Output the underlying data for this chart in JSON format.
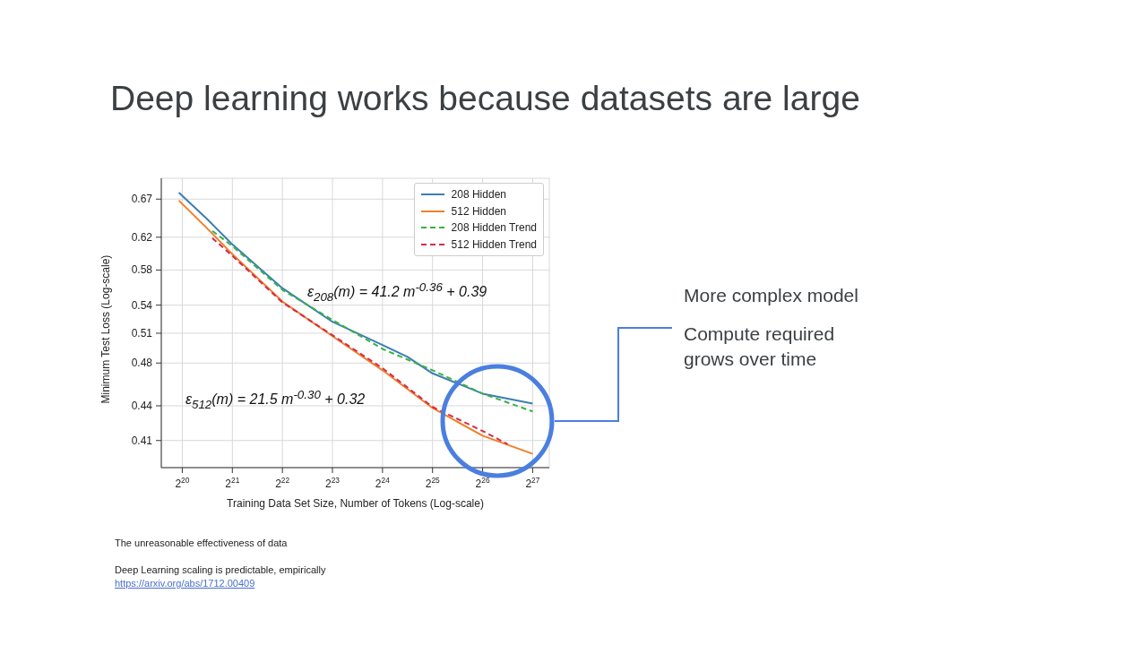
{
  "chart_data": {
    "type": "line",
    "title": "Deep learning works because datasets are large",
    "xlabel": "Training Data Set Size, Number of Tokens (Log-scale)",
    "ylabel": "Minimum Test Loss (Log-scale)",
    "annotations": [
      "ε$_{208}$(m) = 41.2 m$^{-0.36}$ + 0.39",
      "ε$_{512}$(m) = 21.5 m$^{-0.30}$ + 0.32",
      "More complex model",
      "Compute required grows over time",
      "The unreasonable effectiveness of data",
      "Deep Learning scaling is predictable, empirically",
      "https://arxiv.org/abs/1712.00409"
    ],
    "series": [
      {
        "name": "208 Hidden",
        "color": "#3a7fb3",
        "x": [
          1000000,
          1482910,
          2097152,
          4194304,
          8388608,
          16777216,
          23726566,
          33554432,
          67108864,
          134217728
        ],
        "values": [
          0.679,
          0.643,
          0.611,
          0.559,
          0.522,
          0.498,
          0.486,
          0.47,
          0.451,
          0.442
        ]
      },
      {
        "name": "512 Hidden",
        "color": "#f07f2a",
        "x": [
          1000000,
          1482910,
          2097152,
          4194304,
          8388608,
          16777216,
          33554432,
          67108864,
          134217728
        ],
        "values": [
          0.668,
          0.631,
          0.599,
          0.544,
          0.507,
          0.473,
          0.438,
          0.414,
          0.399
        ]
      },
      {
        "name": "208 Hidden Trend",
        "color": "#3cb043",
        "line_style": "dashed",
        "x": [
          1589000,
          2097152,
          4194304,
          8388608,
          16777216,
          33554432,
          67108864,
          134217728
        ],
        "values": [
          0.628,
          0.609,
          0.557,
          0.524,
          0.494,
          0.473,
          0.451,
          0.435
        ]
      },
      {
        "name": "512 Hidden Trend",
        "color": "#d62a4a",
        "line_style": "dashed",
        "x": [
          1589000,
          2097152,
          4194304,
          8388608,
          16777216,
          33554432,
          67108864,
          94906266
        ],
        "values": [
          0.619,
          0.597,
          0.543,
          0.508,
          0.475,
          0.439,
          0.418,
          0.407
        ]
      }
    ],
    "log": "xy",
    "xlim": [
      784000,
      169000000
    ],
    "ylim": [
      0.388,
      0.699
    ],
    "xticks": [
      {
        "value": 1048576,
        "label": "2$^{20}$"
      },
      {
        "value": 2097152,
        "label": "2$^{21}$"
      },
      {
        "value": 4194304,
        "label": "2$^{22}$"
      },
      {
        "value": 8388608,
        "label": "2$^{23}$"
      },
      {
        "value": 16777216,
        "label": "2$^{24}$"
      },
      {
        "value": 33554432,
        "label": "2$^{25}$"
      },
      {
        "value": 67108864,
        "label": "2$^{26}$"
      },
      {
        "value": 134217728,
        "label": "2$^{27}$"
      }
    ],
    "yticks": [
      0.41,
      0.44,
      0.48,
      0.51,
      0.54,
      0.58,
      0.62,
      0.67
    ],
    "grid": true,
    "legend": "top right",
    "marker": "none"
  }
}
